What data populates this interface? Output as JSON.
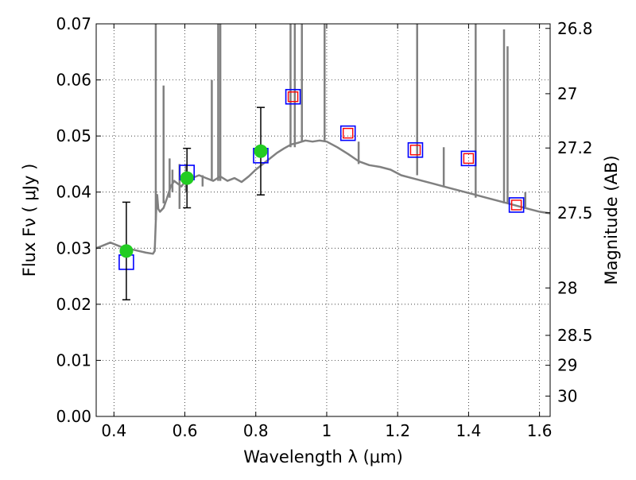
{
  "chart_data": {
    "type": "scatter",
    "xlabel": "Wavelength  λ (μm)",
    "ylabel": "Flux  Fν  ( μJy )",
    "y2label": "Magnitude (AB)",
    "xlim": [
      0.35,
      1.63
    ],
    "ylim": [
      0.0,
      0.07
    ],
    "grid": true,
    "x_ticks": [
      0.4,
      0.6,
      0.8,
      1.0,
      1.2,
      1.4,
      1.6
    ],
    "x_tick_labels": [
      "0.4",
      "0.6",
      "0.8",
      "1",
      "1.2",
      "1.4",
      "1.6"
    ],
    "y_ticks": [
      0.0,
      0.01,
      0.02,
      0.03,
      0.04,
      0.05,
      0.06,
      0.07
    ],
    "y_tick_labels": [
      "0.00",
      "0.01",
      "0.02",
      "0.03",
      "0.04",
      "0.05",
      "0.06",
      "0.07"
    ],
    "y2_ticks": [
      26.8,
      27.0,
      27.2,
      27.5,
      28.0,
      28.5,
      29.0,
      30.0
    ],
    "y2_tick_labels": [
      "26.8",
      "27",
      "27.2",
      "27.5",
      "28",
      "28.5",
      "29",
      "30"
    ],
    "colors": {
      "model": "#808080",
      "observed": "#22cc22",
      "model_bands": "#0000ff",
      "predicted": "#ff0000",
      "errorbar": "#000000"
    },
    "series": [
      {
        "type": "line",
        "x": [
          0.35,
          0.37,
          0.39,
          0.41,
          0.43,
          0.45,
          0.47,
          0.49,
          0.51,
          0.515,
          0.52,
          0.522,
          0.525,
          0.53,
          0.54,
          0.55,
          0.56,
          0.57,
          0.58,
          0.59,
          0.6,
          0.62,
          0.64,
          0.66,
          0.68,
          0.7,
          0.72,
          0.74,
          0.76,
          0.78,
          0.8,
          0.82,
          0.84,
          0.86,
          0.88,
          0.9,
          0.92,
          0.94,
          0.96,
          0.98,
          1.0,
          1.03,
          1.06,
          1.09,
          1.12,
          1.15,
          1.18,
          1.21,
          1.24,
          1.27,
          1.3,
          1.33,
          1.36,
          1.39,
          1.42,
          1.45,
          1.48,
          1.51,
          1.54,
          1.57,
          1.6,
          1.63
        ],
        "y": [
          0.03,
          0.0305,
          0.031,
          0.0305,
          0.03,
          0.0298,
          0.0295,
          0.0292,
          0.029,
          0.0295,
          0.038,
          0.0395,
          0.037,
          0.0365,
          0.0372,
          0.039,
          0.041,
          0.042,
          0.0415,
          0.041,
          0.0418,
          0.0425,
          0.043,
          0.0425,
          0.042,
          0.0428,
          0.042,
          0.0425,
          0.0418,
          0.0428,
          0.044,
          0.045,
          0.046,
          0.047,
          0.0478,
          0.0485,
          0.0488,
          0.0492,
          0.049,
          0.0492,
          0.049,
          0.048,
          0.0468,
          0.0455,
          0.0448,
          0.0445,
          0.044,
          0.043,
          0.0425,
          0.042,
          0.0415,
          0.041,
          0.0405,
          0.04,
          0.0395,
          0.039,
          0.0385,
          0.038,
          0.0375,
          0.037,
          0.0365,
          0.0362
        ]
      },
      {
        "type": "scatter-errorbar",
        "x": [
          0.435,
          0.606,
          0.814
        ],
        "y": [
          0.0295,
          0.0425,
          0.0473
        ],
        "yerr": [
          0.0087,
          0.0053,
          0.0078
        ]
      },
      {
        "type": "scatter",
        "marker": "square",
        "x": [
          0.435,
          0.606,
          0.814,
          0.905,
          1.06,
          1.25,
          1.4,
          1.535
        ],
        "y": [
          0.0275,
          0.0435,
          0.0465,
          0.057,
          0.0505,
          0.0475,
          0.046,
          0.0377
        ]
      },
      {
        "type": "scatter",
        "marker": "square",
        "x": [
          0.905,
          1.06,
          1.25,
          1.4,
          1.535
        ],
        "y": [
          0.057,
          0.0505,
          0.0475,
          0.046,
          0.0377
        ]
      }
    ],
    "emission_lines": [
      {
        "x": 0.518,
        "y_low": 0.035,
        "y_high": 0.07
      },
      {
        "x": 0.54,
        "y_low": 0.038,
        "y_high": 0.059
      },
      {
        "x": 0.557,
        "y_low": 0.039,
        "y_high": 0.046
      },
      {
        "x": 0.565,
        "y_low": 0.04,
        "y_high": 0.044
      },
      {
        "x": 0.585,
        "y_low": 0.037,
        "y_high": 0.045
      },
      {
        "x": 0.603,
        "y_low": 0.04,
        "y_high": 0.045
      },
      {
        "x": 0.65,
        "y_low": 0.041,
        "y_high": 0.043
      },
      {
        "x": 0.676,
        "y_low": 0.042,
        "y_high": 0.06
      },
      {
        "x": 0.694,
        "y_low": 0.042,
        "y_high": 0.07
      },
      {
        "x": 0.7,
        "y_low": 0.042,
        "y_high": 0.07
      },
      {
        "x": 0.898,
        "y_low": 0.048,
        "y_high": 0.07
      },
      {
        "x": 0.91,
        "y_low": 0.048,
        "y_high": 0.07
      },
      {
        "x": 0.93,
        "y_low": 0.049,
        "y_high": 0.07
      },
      {
        "x": 0.994,
        "y_low": 0.049,
        "y_high": 0.07
      },
      {
        "x": 1.09,
        "y_low": 0.045,
        "y_high": 0.049
      },
      {
        "x": 1.255,
        "y_low": 0.043,
        "y_high": 0.07
      },
      {
        "x": 1.33,
        "y_low": 0.041,
        "y_high": 0.048
      },
      {
        "x": 1.42,
        "y_low": 0.039,
        "y_high": 0.07
      },
      {
        "x": 1.5,
        "y_low": 0.038,
        "y_high": 0.069
      },
      {
        "x": 1.51,
        "y_low": 0.038,
        "y_high": 0.066
      },
      {
        "x": 1.56,
        "y_low": 0.037,
        "y_high": 0.04
      }
    ]
  }
}
